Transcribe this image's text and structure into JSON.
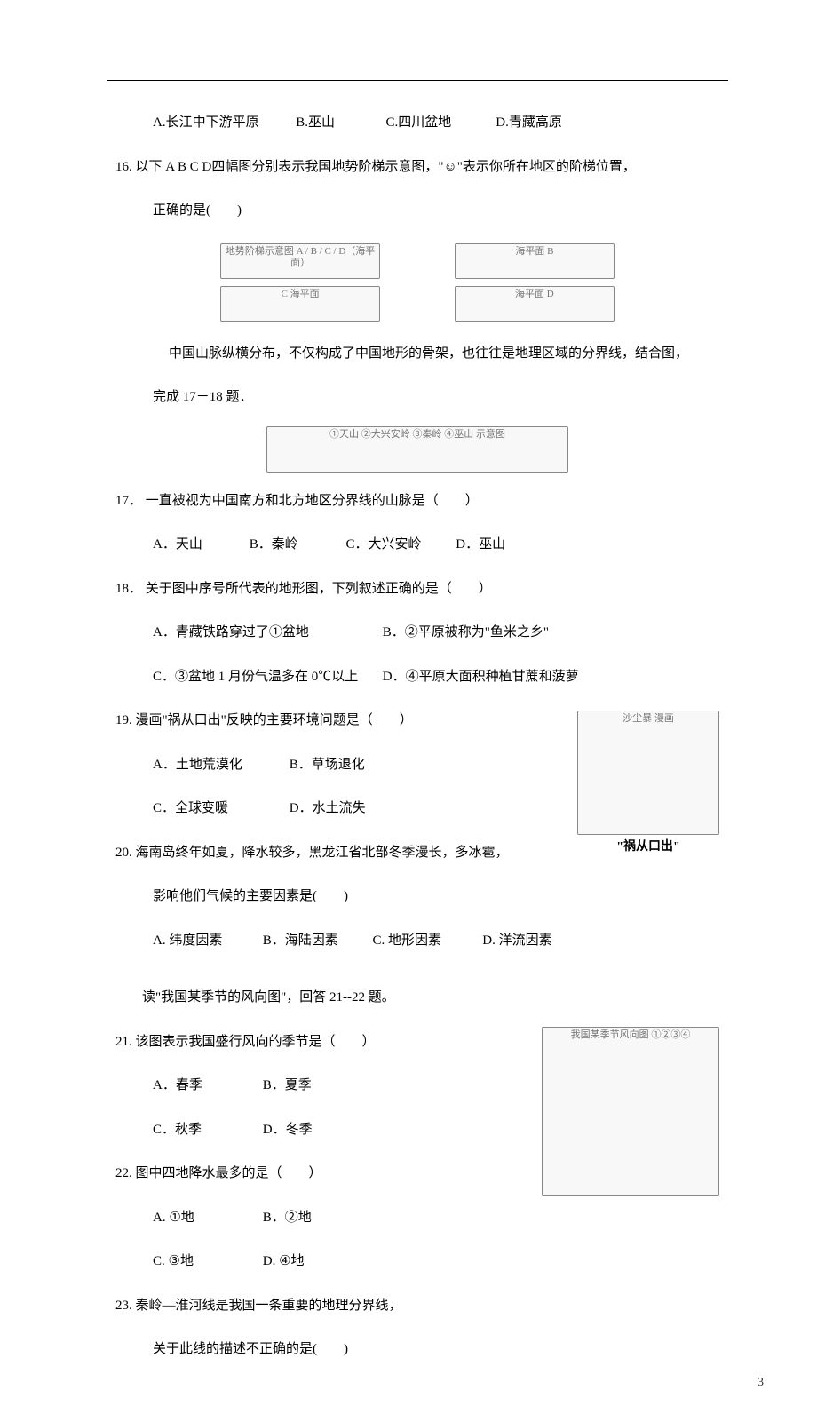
{
  "page_number": "3",
  "q15_options": {
    "A": "A.长江中下游平原",
    "B": "B.巫山",
    "C": "C.四川盆地",
    "D": "D.青藏高原"
  },
  "q16": {
    "num": "16.",
    "stem1": "以下 A B C D四幅图分别表示我国地势阶梯示意图，\"☺\"表示你所在地区的阶梯位置，",
    "stem2": "正确的是(　　)",
    "fig_label": "地势阶梯示意图 A / B / C / D（海平面）"
  },
  "passage1": {
    "line1": "中国山脉纵横分布，不仅构成了中国地形的骨架，也往往是地理区域的分界线，结合图，",
    "line2": "完成 17－18 题．",
    "fig_label": "①天山 ②大兴安岭 ③秦岭 ④巫山 示意图"
  },
  "q17": {
    "num": "17．",
    "stem": "一直被视为中国南方和北方地区分界线的山脉是（　　）",
    "opts": {
      "A": "A．天山",
      "B": "B．秦岭",
      "C": "C．大兴安岭",
      "D": "D．巫山"
    }
  },
  "q18": {
    "num": "18．",
    "stem": "关于图中序号所代表的地形图，下列叙述正确的是（　　）",
    "opts": {
      "A": "A．青藏铁路穿过了①盆地",
      "B": "B．②平原被称为\"鱼米之乡\"",
      "C": "C．③盆地 1 月份气温多在 0℃以上",
      "D": "D．④平原大面积种植甘蔗和菠萝"
    }
  },
  "q19": {
    "num": "19.",
    "stem": "漫画\"祸从口出\"反映的主要环境问题是（　　）",
    "opts": {
      "A": "A．土地荒漠化",
      "B": "B．草场退化",
      "C": "C．全球变暖",
      "D": "D．水土流失"
    },
    "cartoon_label": "沙尘暴 漫画",
    "cartoon_caption": "\"祸从口出\""
  },
  "q20": {
    "num": "20.",
    "stem1": "海南岛终年如夏，降水较多，黑龙江省北部冬季漫长，多冰雹，",
    "stem2": "影响他们气候的主要因素是(　　)",
    "opts": {
      "A": "A. 纬度因素",
      "B": "B．海陆因素",
      "C": "C. 地形因素",
      "D": "D. 洋流因素"
    }
  },
  "passage2": "读\"我国某季节的风向图\"，回答 21--22 题。",
  "q21": {
    "num": "21.",
    "stem": "该图表示我国盛行风向的季节是（　　）",
    "opts": {
      "A": "A．春季",
      "B": "B．夏季",
      "C": "C．秋季",
      "D": "D．冬季"
    },
    "map_label": "我国某季节风向图 ①②③④"
  },
  "q22": {
    "num": "22.",
    "stem": "图中四地降水最多的是（　　）",
    "opts": {
      "A": "A. ①地",
      "B": "B．②地",
      "C": "C. ③地",
      "D": "D. ④地"
    }
  },
  "q23": {
    "num": "23.",
    "stem1": "秦岭—淮河线是我国一条重要的地理分界线，",
    "stem2": "关于此线的描述不正确的是(　　)"
  }
}
